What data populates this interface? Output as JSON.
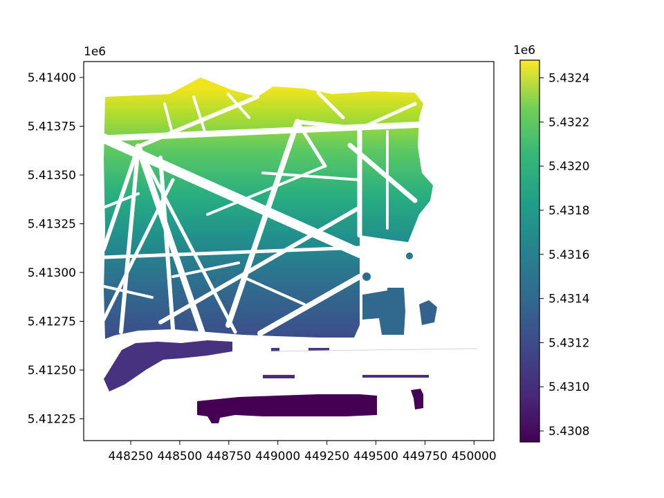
{
  "map": {
    "x_axis": {
      "offset_text": "",
      "ticks": [
        "448250",
        "448500",
        "448750",
        "449000",
        "449250",
        "449500",
        "449750",
        "450000"
      ],
      "tick_values": [
        448250,
        448500,
        448750,
        449000,
        449250,
        449500,
        449750,
        450000
      ],
      "range": [
        449836,
        450110
      ]
    },
    "y_axis": {
      "offset_text": "1e6",
      "ticks": [
        "5.41400",
        "5.41375",
        "5.41350",
        "5.41325",
        "5.41300",
        "5.41275",
        "5.41250",
        "5.41225"
      ],
      "tick_values": [
        5.414,
        5.41375,
        5.4135,
        5.41325,
        5.413,
        5.41275,
        5.4125,
        5.41225
      ]
    },
    "colorbar": {
      "colormap": "viridis",
      "offset_text": "1e6",
      "ticks": [
        "5.4324",
        "5.4322",
        "5.4320",
        "5.4318",
        "5.4316",
        "5.4314",
        "5.4312",
        "5.4310",
        "5.4308"
      ],
      "tick_values": [
        5.4324,
        5.4322,
        5.432,
        5.4318,
        5.4316,
        5.4314,
        5.4312,
        5.431,
        5.4308
      ],
      "range": [
        5.43075,
        5.43248
      ]
    },
    "colors": {
      "viridis_low": "#440154",
      "viridis_mid": "#21918c",
      "viridis_high": "#fde725",
      "street": "#ffffff"
    }
  }
}
